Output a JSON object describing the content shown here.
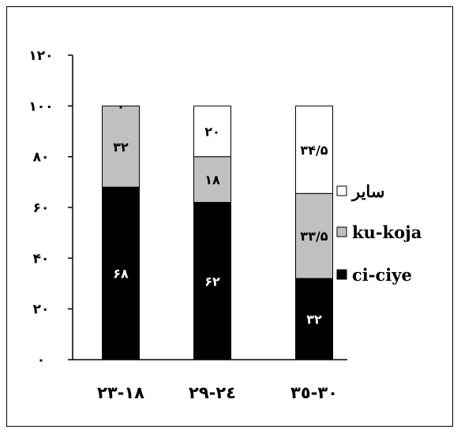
{
  "chart_data": {
    "type": "bar",
    "stacked": true,
    "categories": [
      "١٨-٢٣",
      "٢٤-٢٩",
      "٣٠-٣٥"
    ],
    "series": [
      {
        "name": "ci-ciye",
        "values": [
          68,
          62,
          32
        ],
        "labels": [
          "۶٨",
          "۶٢",
          "٣٢"
        ],
        "color": "#000000",
        "text_color": "#ffffff"
      },
      {
        "name": "ku-koja",
        "values": [
          32,
          18,
          33.5
        ],
        "labels": [
          "٣٢",
          "١٨",
          "٣٣/۵"
        ],
        "color": "#c0c0c0",
        "text_color": "#000000"
      },
      {
        "name": "ساير",
        "values": [
          0,
          20,
          34.5
        ],
        "labels": [
          "٠",
          "٢٠",
          "٣۴/۵"
        ],
        "color": "#ffffff",
        "text_color": "#000000"
      }
    ],
    "y_ticks": [
      0,
      20,
      40,
      60,
      80,
      100,
      120
    ],
    "y_tick_labels": [
      "٠",
      "٢٠",
      "۴٠",
      "۶٠",
      "٨٠",
      "١٠٠",
      "١٢٠"
    ],
    "ylim": [
      0,
      120
    ],
    "legend_position": "right",
    "grid": false
  }
}
